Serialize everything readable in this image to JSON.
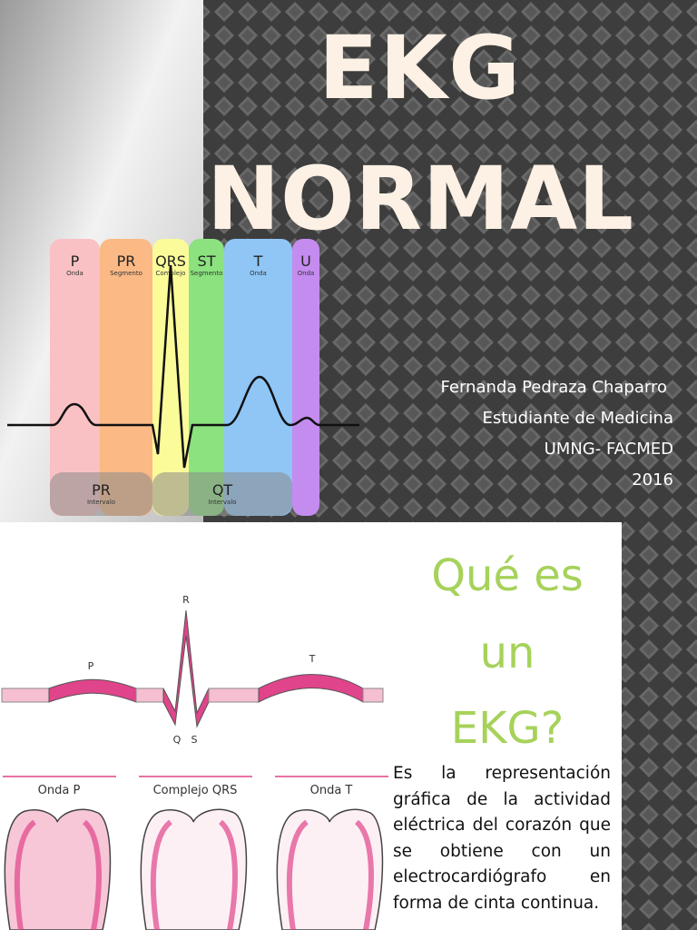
{
  "slide1": {
    "title_lines": [
      "EKG",
      "NORMAL"
    ],
    "diagram": {
      "bands": [
        {
          "label": "P",
          "sublabel": "Onda"
        },
        {
          "label": "PR",
          "sublabel": "Segmento"
        },
        {
          "label": "QRS",
          "sublabel": "Complejo"
        },
        {
          "label": "ST",
          "sublabel": "Segmento"
        },
        {
          "label": "T",
          "sublabel": "Onda"
        },
        {
          "label": "U",
          "sublabel": "Onda"
        }
      ],
      "intervals": [
        {
          "label": "PR",
          "sublabel": "Intervalo"
        },
        {
          "label": "QT",
          "sublabel": "Intervalo"
        }
      ]
    },
    "author_lines": [
      "Fernanda Pedraza Chaparro",
      "Estudiante de Medicina",
      "UMNG- FACMED",
      "2016"
    ]
  },
  "slide2": {
    "title_lines": [
      "Qué es",
      "un",
      "EKG?"
    ],
    "diagram": {
      "wave_labels": [
        "R",
        "P",
        "T",
        "Q",
        "S"
      ],
      "panels": [
        "Onda P",
        "Complejo QRS",
        "Onda T"
      ]
    },
    "body": "Es la representación gráfica de la actividad eléctrica del corazón que se obtiene con un electrocardiógrafo en forma de cinta continua."
  }
}
